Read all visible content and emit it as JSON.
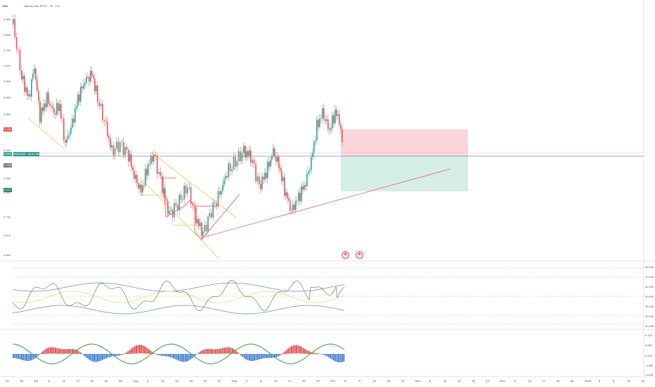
{
  "header": {
    "symbol_short": "USD",
    "title": "Natural Gas SPOT · 4h · CH"
  },
  "price_axis": {
    "labels": [
      "3.900",
      "3.800",
      "3.700",
      "3.600",
      "3.500",
      "3.400",
      "3.300",
      "3.100",
      "2.940",
      "2.820",
      "2.730",
      "2.675",
      "2.560"
    ],
    "tag_red": "3.220",
    "tag_last_a": "3.063",
    "tag_last_b": "3.038",
    "tag_green": "2.871",
    "cursor_box": "NATGAS · 00:41:36"
  },
  "rsi_axis": {
    "labels": [
      "80.000",
      "70.000",
      "60.000",
      "50.000",
      "40.000",
      "30.000",
      "20.000"
    ]
  },
  "macd_axis": {
    "labels": [
      "0.100",
      "0.050",
      "0.000",
      "-0.050",
      "-0.100"
    ]
  },
  "time_axis": {
    "labels": [
      "21",
      "26",
      "Jul",
      "8",
      "11",
      "17",
      "22",
      "25",
      "29",
      "Aug",
      "6",
      "11",
      "14",
      "19",
      "23",
      "27",
      "Sep",
      "4",
      "8",
      "12",
      "17",
      "20",
      "24",
      "Oct",
      "8",
      "9",
      "14",
      "22",
      "27",
      "Nov",
      "6",
      "11",
      "14",
      "19",
      "24",
      "Dec",
      "9",
      "12",
      "17",
      "22",
      "28",
      "2026",
      "6",
      "9",
      "14",
      "19"
    ]
  },
  "markers": {
    "earnings_icon": "earnings-flag-icon",
    "dividend_icon": "flag-icon"
  },
  "colors": {
    "up": "#26a69a",
    "down": "#ef5350",
    "trend": "#e8c848",
    "support": "#ee6c7c",
    "stop_zone": "#f9d6d9",
    "target_zone": "#d6eee8",
    "bb": "#4a90c8",
    "rsi": "#d4c34a"
  }
}
